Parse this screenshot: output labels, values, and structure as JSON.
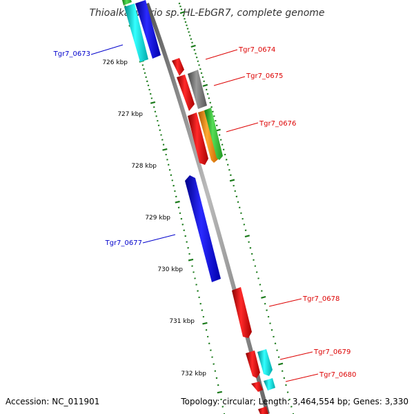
{
  "title": "Thioalkalivibrio sp. HL-EbGR7, complete genome",
  "accession_label": "Accession: NC_011901",
  "summary_label": "Topology: circular; Length: 3,464,554 bp; Genes: 3,330",
  "ruler_labels": [
    "726 kbp",
    "727 kbp",
    "728 kbp",
    "729 kbp",
    "730 kbp",
    "731 kbp",
    "732 kbp"
  ],
  "gene_labels": [
    {
      "text": "Tgr7_0673",
      "color": "#0000cc"
    },
    {
      "text": "Tgr7_0674",
      "color": "#dd0000"
    },
    {
      "text": "Tgr7_0675",
      "color": "#dd0000"
    },
    {
      "text": "Tgr7_0676",
      "color": "#dd0000"
    },
    {
      "text": "Tgr7_0677",
      "color": "#0000cc"
    },
    {
      "text": "Tgr7_0678",
      "color": "#dd0000"
    },
    {
      "text": "Tgr7_0679",
      "color": "#dd0000"
    },
    {
      "text": "Tgr7_0680",
      "color": "#dd0000"
    }
  ],
  "colors": {
    "backbone": "#808080",
    "ticks": "#1a7a1a",
    "red": "#ee0000",
    "blue": "#0000ee",
    "cyan": "#00dddd",
    "grey": "#707070",
    "orange": "#ff8800",
    "green": "#33bb33"
  }
}
